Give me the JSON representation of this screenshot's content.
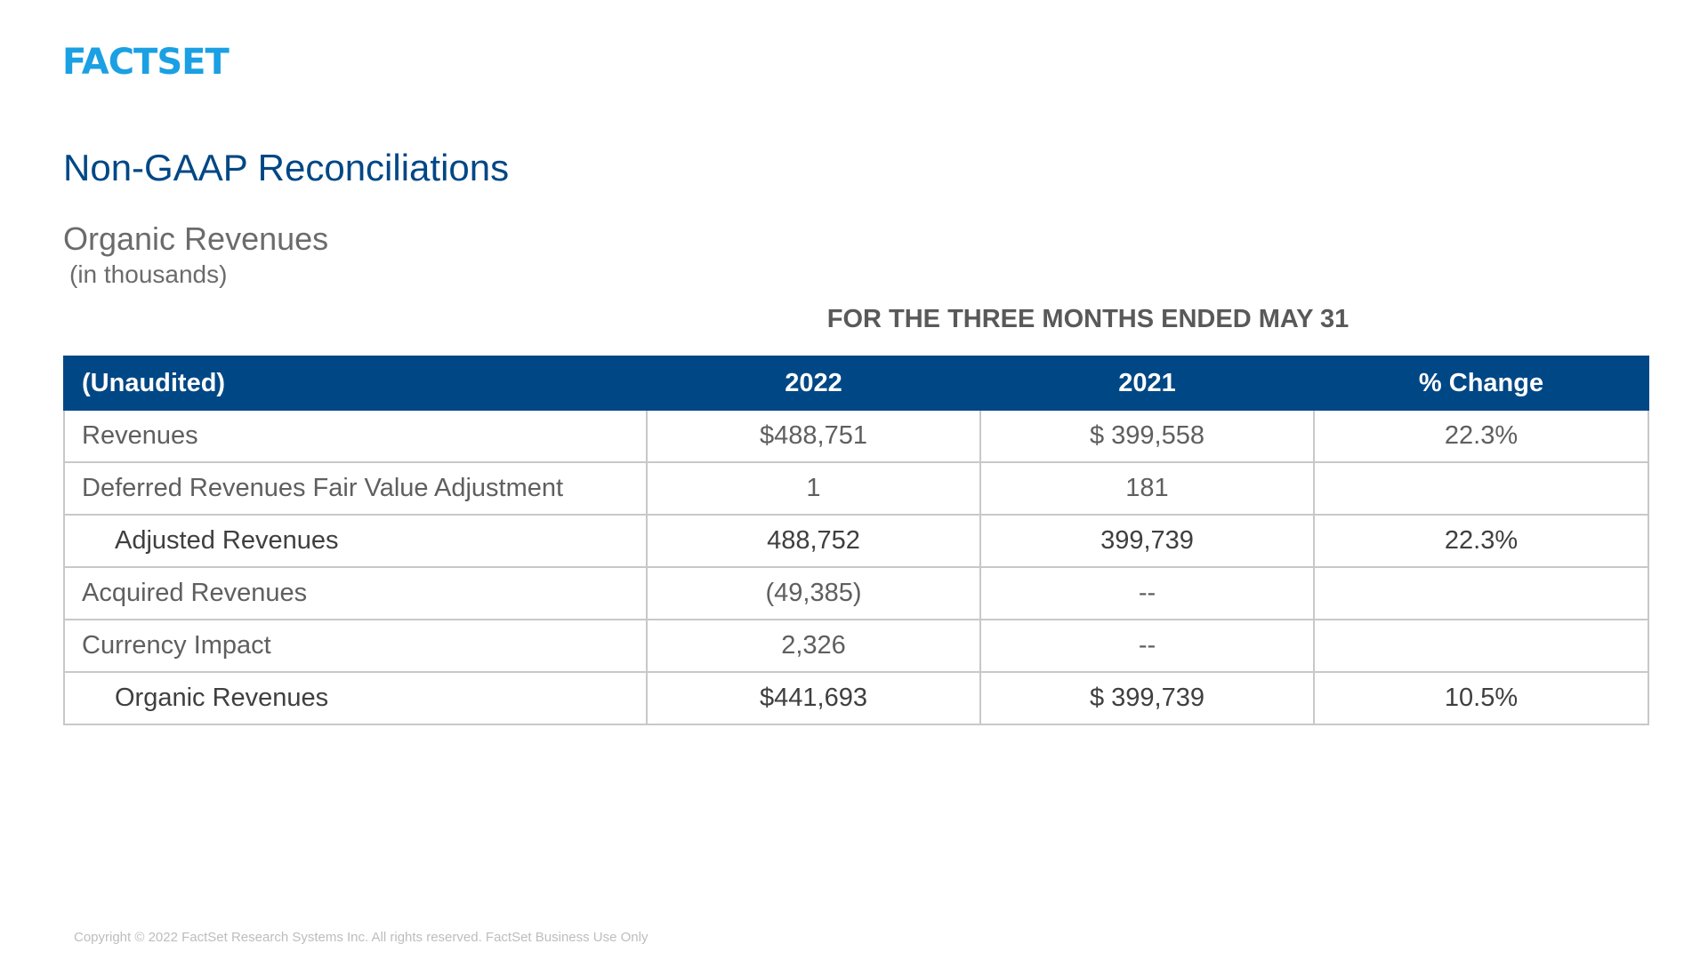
{
  "header": {
    "logo_text": "FACTSET",
    "title": "Non-GAAP Reconciliations"
  },
  "section": {
    "subtitle": "Organic Revenues",
    "units": "(in thousands)",
    "period_label": "FOR THE THREE MONTHS ENDED MAY 31"
  },
  "table": {
    "headers": [
      "(Unaudited)",
      "2022",
      "2021",
      "% Change"
    ],
    "rows": [
      {
        "label": "Revenues",
        "v2022": "$488,751",
        "v2021": "$ 399,558",
        "change": "22.3%"
      },
      {
        "label": "Deferred Revenues Fair Value Adjustment",
        "v2022": "1",
        "v2021": "181",
        "change": ""
      },
      {
        "label": "Adjusted Revenues",
        "v2022": "488,752",
        "v2021": "399,739",
        "change": "22.3%"
      },
      {
        "label": "Acquired Revenues",
        "v2022": "(49,385)",
        "v2021": "--",
        "change": ""
      },
      {
        "label": "Currency Impact",
        "v2022": "2,326",
        "v2021": "--",
        "change": ""
      },
      {
        "label": "Organic Revenues",
        "v2022": "$441,693",
        "v2021": "$ 399,739",
        "change": "10.5%"
      }
    ]
  },
  "footer": {
    "copyright": "Copyright © 2022 FactSet Research Systems Inc. All rights reserved. FactSet Business Use Only"
  },
  "colors": {
    "brand_logo": "#1aa0e3",
    "title_blue": "#004785",
    "header_fill": "#004785",
    "grid_line": "#c8c8c8"
  }
}
